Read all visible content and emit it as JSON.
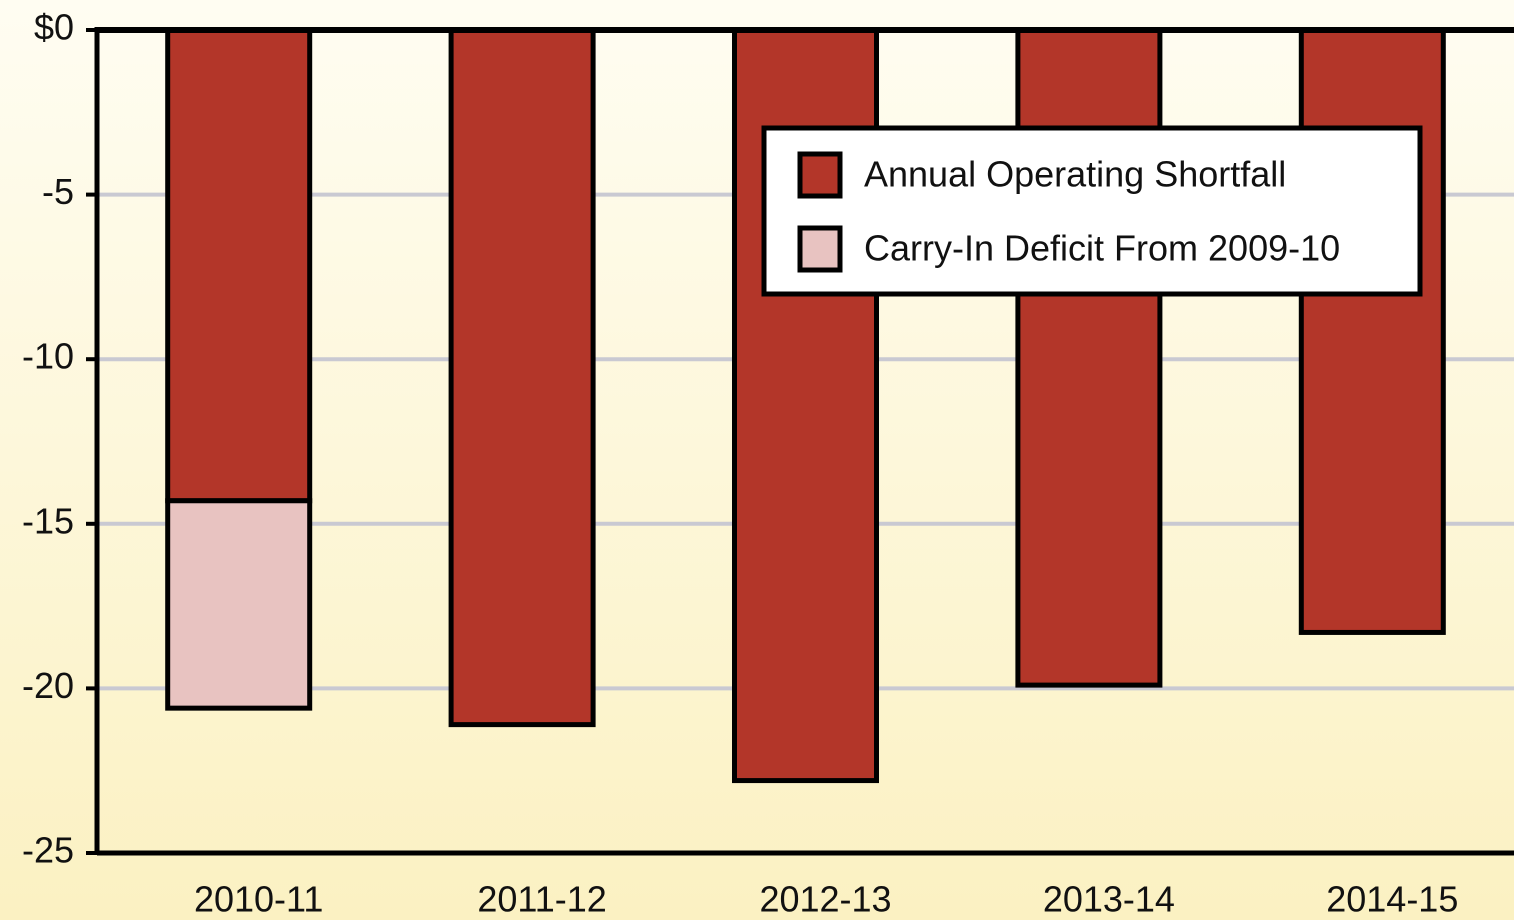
{
  "chart_data": {
    "type": "bar",
    "stacked": true,
    "categories": [
      "2010-11",
      "2011-12",
      "2012-13",
      "2013-14",
      "2014-15"
    ],
    "series": [
      {
        "name": "Annual Operating Shortfall",
        "color": "#b33629",
        "values": [
          -14.3,
          -21.1,
          -22.8,
          -19.9,
          -18.3
        ]
      },
      {
        "name": "Carry-In Deficit From 2009-10",
        "color": "#e8c3c1",
        "values": [
          -6.3,
          null,
          null,
          null,
          null
        ]
      }
    ],
    "ylim": [
      -25,
      0
    ],
    "yticks": [
      {
        "value": 0,
        "label": "$0"
      },
      -5,
      -10,
      -15,
      -20,
      -25
    ],
    "grid": true
  }
}
